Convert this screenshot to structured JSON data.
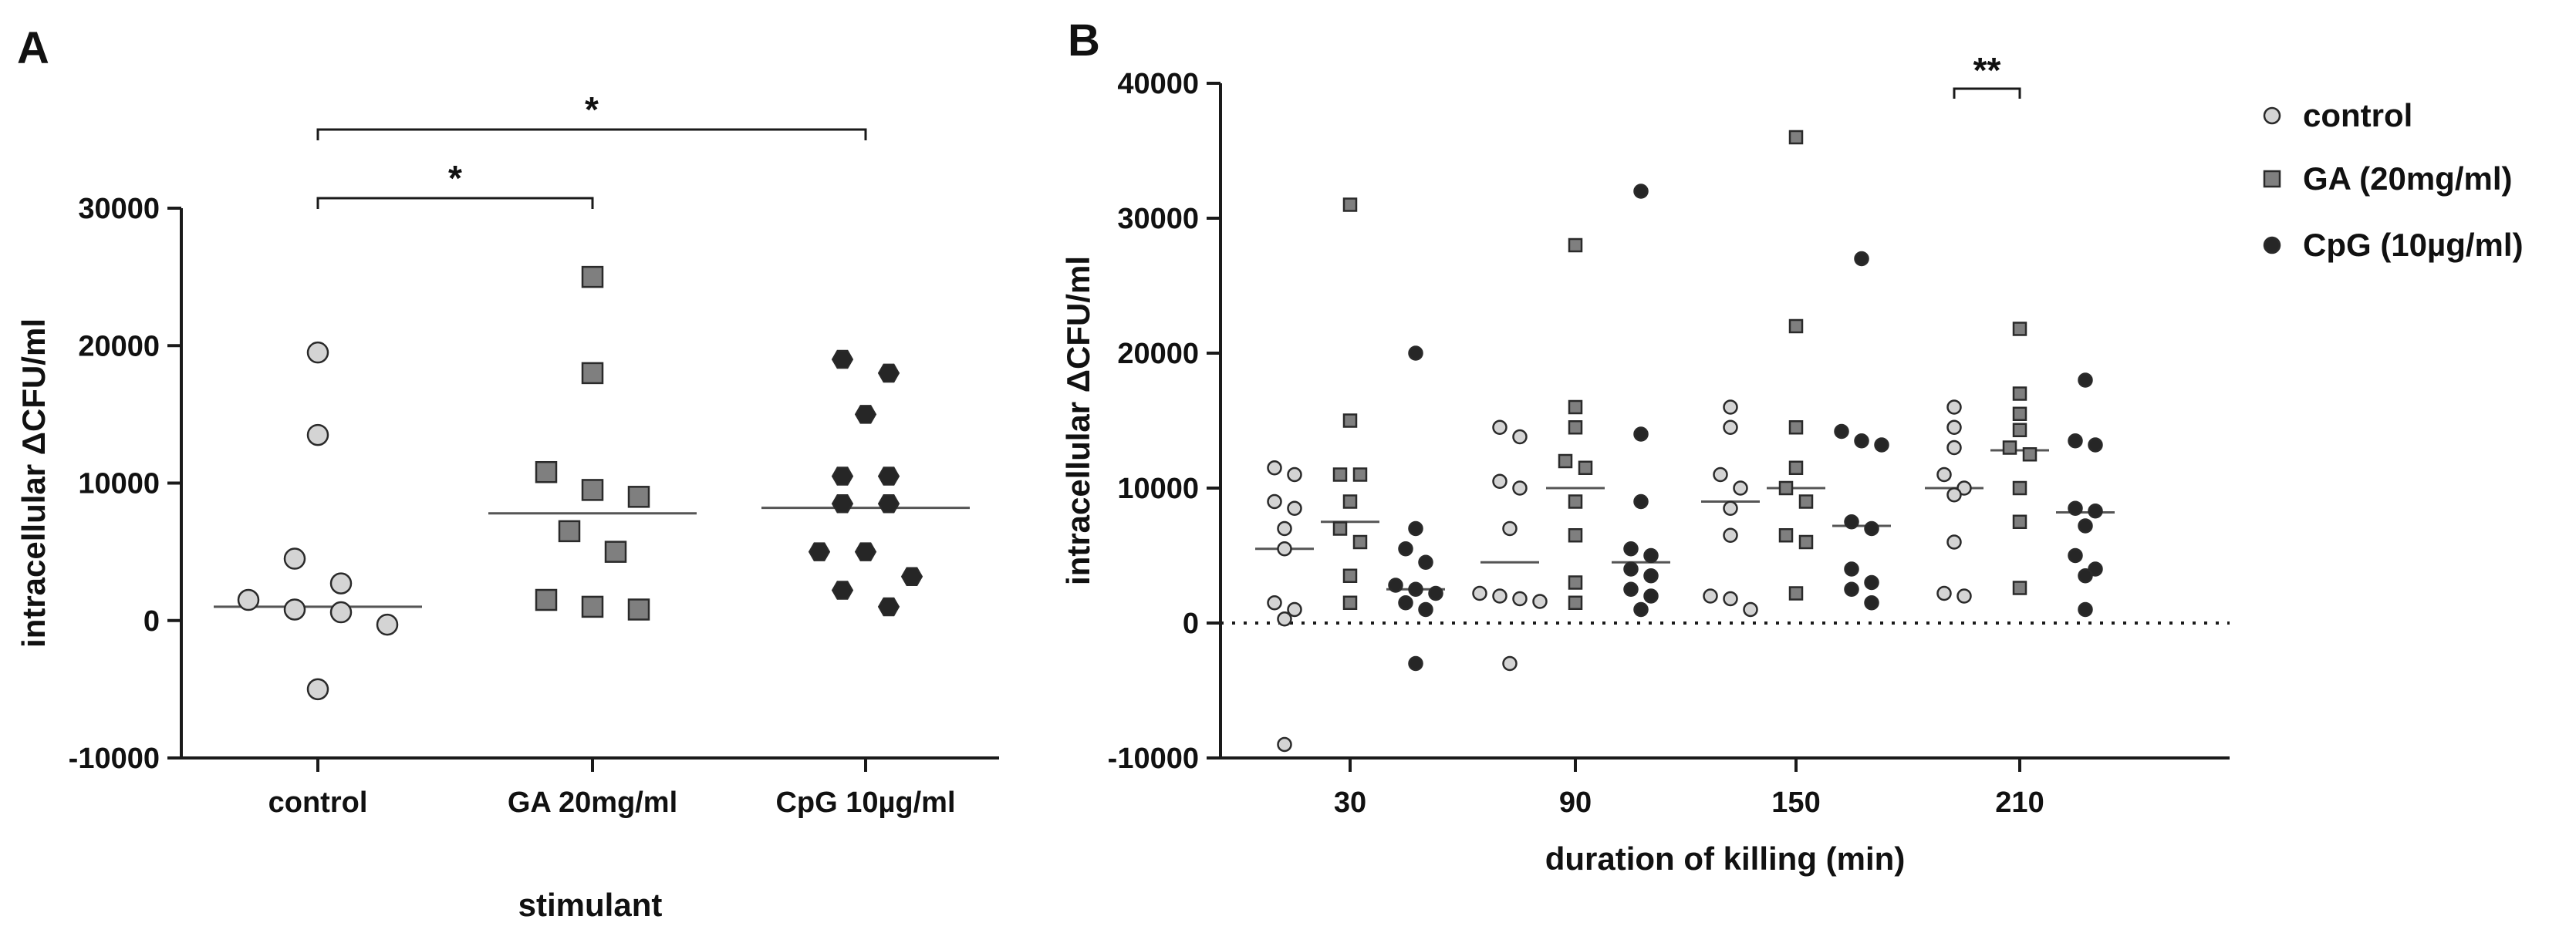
{
  "chart_data": [
    {
      "panel": "A",
      "type": "scatter",
      "subtype": "dot-plot with median",
      "xlabel": "stimulant",
      "ylabel": "intracellular ΔCFU/ml",
      "ylim": [
        -10000,
        30000
      ],
      "yticks": [
        "-10000",
        "0",
        "10000",
        "20000",
        "30000"
      ],
      "categories": [
        "control",
        "GA 20mg/ml",
        "CpG 10µg/ml"
      ],
      "series": [
        {
          "name": "control",
          "marker": "circle",
          "color": "#d4d4d4",
          "median": 1000,
          "values": [
            19500,
            13500,
            4500,
            2700,
            1500,
            800,
            600,
            -300,
            -5000
          ]
        },
        {
          "name": "GA 20mg/ml",
          "marker": "square",
          "color": "#7f7f7f",
          "median": 7800,
          "values": [
            25000,
            18000,
            10800,
            9500,
            9000,
            6500,
            5000,
            1500,
            1000,
            800
          ]
        },
        {
          "name": "CpG 10µg/ml",
          "marker": "hexagon",
          "color": "#262626",
          "median": 8200,
          "values": [
            19000,
            18000,
            15000,
            10500,
            10500,
            8500,
            8500,
            5000,
            5000,
            3200,
            2200,
            1000
          ]
        }
      ],
      "significance": [
        {
          "from": "control",
          "to": "GA 20mg/ml",
          "label": "*"
        },
        {
          "from": "control",
          "to": "CpG 10µg/ml",
          "label": "*"
        }
      ]
    },
    {
      "panel": "B",
      "type": "scatter",
      "subtype": "grouped dot-plot with median",
      "xlabel": "duration of killing (min)",
      "ylabel": "intracellular ΔCFU/ml",
      "ylim": [
        -10000,
        40000
      ],
      "yticks": [
        "-10000",
        "0",
        "10000",
        "20000",
        "30000",
        "40000"
      ],
      "categories": [
        "30",
        "90",
        "150",
        "210"
      ],
      "legend_position": "top-right",
      "series": [
        {
          "name": "control",
          "marker": "circle",
          "color": "#d4d4d4",
          "medians": [
            5500,
            4500,
            9000,
            10000
          ],
          "values": [
            [
              11500,
              11000,
              9000,
              8500,
              7000,
              5500,
              1500,
              1000,
              300,
              -9000
            ],
            [
              14500,
              13800,
              10500,
              10000,
              7000,
              2200,
              2000,
              1800,
              1600,
              -3000
            ],
            [
              16000,
              14500,
              11000,
              10000,
              8500,
              6500,
              2000,
              1800,
              1000
            ],
            [
              16000,
              14500,
              13000,
              11000,
              10000,
              9500,
              6000,
              2200,
              2000
            ]
          ]
        },
        {
          "name": "GA (20mg/ml)",
          "marker": "square",
          "color": "#7f7f7f",
          "medians": [
            7500,
            10000,
            10000,
            12800
          ],
          "values": [
            [
              31000,
              15000,
              11000,
              11000,
              9000,
              7000,
              6000,
              3500,
              1500
            ],
            [
              28000,
              16000,
              14500,
              12000,
              11500,
              9000,
              6500,
              3000,
              1500
            ],
            [
              36000,
              22000,
              14500,
              11500,
              10000,
              9000,
              6500,
              6000,
              2200
            ],
            [
              21800,
              17000,
              15500,
              14300,
              13000,
              12500,
              10000,
              7500,
              2600
            ]
          ]
        },
        {
          "name": "CpG (10µg/ml)",
          "marker": "circle",
          "color": "#262626",
          "medians": [
            2500,
            4500,
            7200,
            8200
          ],
          "values": [
            [
              20000,
              7000,
              5500,
              4500,
              2800,
              2500,
              2200,
              1500,
              1000,
              -3000
            ],
            [
              32000,
              14000,
              9000,
              5500,
              5000,
              4000,
              3500,
              2500,
              2000,
              1000
            ],
            [
              27000,
              14200,
              13500,
              13200,
              7500,
              7000,
              4000,
              3000,
              2500,
              1500
            ],
            [
              18000,
              13500,
              13200,
              8500,
              8300,
              7200,
              5000,
              4000,
              3500,
              1000
            ]
          ]
        }
      ],
      "significance": [
        {
          "category": "210",
          "from": "control",
          "to": "GA (20mg/ml)",
          "label": "**"
        }
      ]
    }
  ]
}
